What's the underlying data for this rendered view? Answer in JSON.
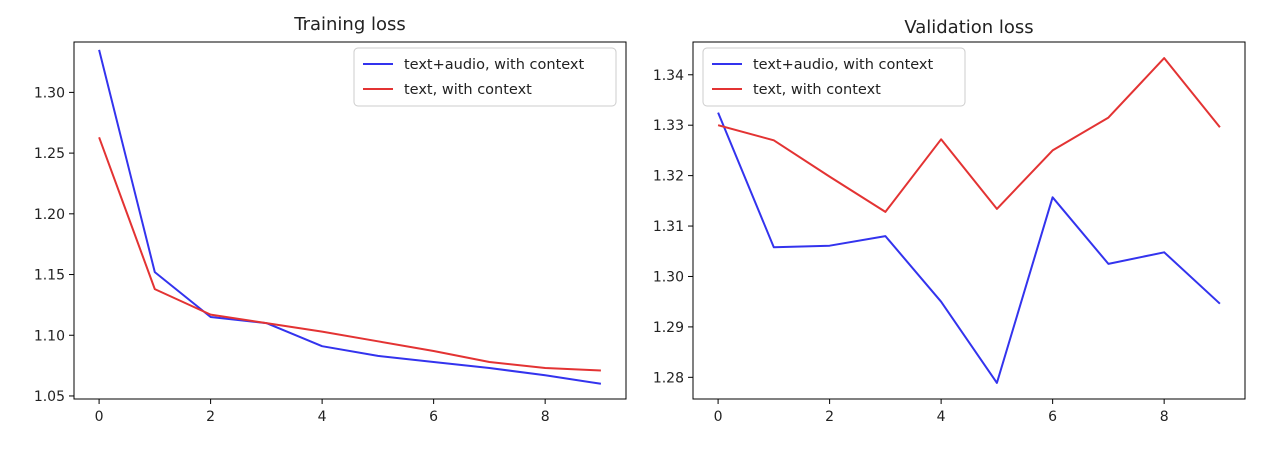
{
  "chart_data": [
    {
      "type": "line",
      "title": "Training loss",
      "xlabel": "",
      "ylabel": "",
      "x": [
        0,
        1,
        2,
        3,
        4,
        5,
        6,
        7,
        8,
        9
      ],
      "xlim": [
        -0.45,
        9.45
      ],
      "ylim": [
        1.0475,
        1.3415
      ],
      "xticks": [
        "0",
        "2",
        "4",
        "6",
        "8"
      ],
      "yticks": [
        "1.05",
        "1.10",
        "1.15",
        "1.20",
        "1.25",
        "1.30"
      ],
      "grid": false,
      "legend_position": "upper right",
      "series": [
        {
          "name": "text+audio, with context",
          "color": "#3333ee",
          "values": [
            1.335,
            1.152,
            1.115,
            1.11,
            1.091,
            1.083,
            1.078,
            1.073,
            1.067,
            1.06
          ]
        },
        {
          "name": "text, with context",
          "color": "#e33333",
          "values": [
            1.263,
            1.138,
            1.117,
            1.11,
            1.103,
            1.095,
            1.087,
            1.078,
            1.073,
            1.071
          ]
        }
      ]
    },
    {
      "type": "line",
      "title": "Validation loss",
      "xlabel": "",
      "ylabel": "",
      "x": [
        0,
        1,
        2,
        3,
        4,
        5,
        6,
        7,
        8,
        9
      ],
      "xlim": [
        -0.45,
        9.45
      ],
      "ylim": [
        1.2757,
        1.3465
      ],
      "xticks": [
        "0",
        "2",
        "4",
        "6",
        "8"
      ],
      "yticks": [
        "1.28",
        "1.29",
        "1.30",
        "1.31",
        "1.32",
        "1.33",
        "1.34"
      ],
      "grid": false,
      "legend_position": "upper left",
      "series": [
        {
          "name": "text+audio, with context",
          "color": "#3333ee",
          "values": [
            1.3325,
            1.3058,
            1.3061,
            1.308,
            1.295,
            1.2789,
            1.3157,
            1.3025,
            1.3048,
            1.2946
          ]
        },
        {
          "name": "text, with context",
          "color": "#e33333",
          "values": [
            1.33,
            1.327,
            1.3198,
            1.3128,
            1.3272,
            1.3134,
            1.325,
            1.3315,
            1.3433,
            1.3296
          ]
        }
      ]
    }
  ]
}
